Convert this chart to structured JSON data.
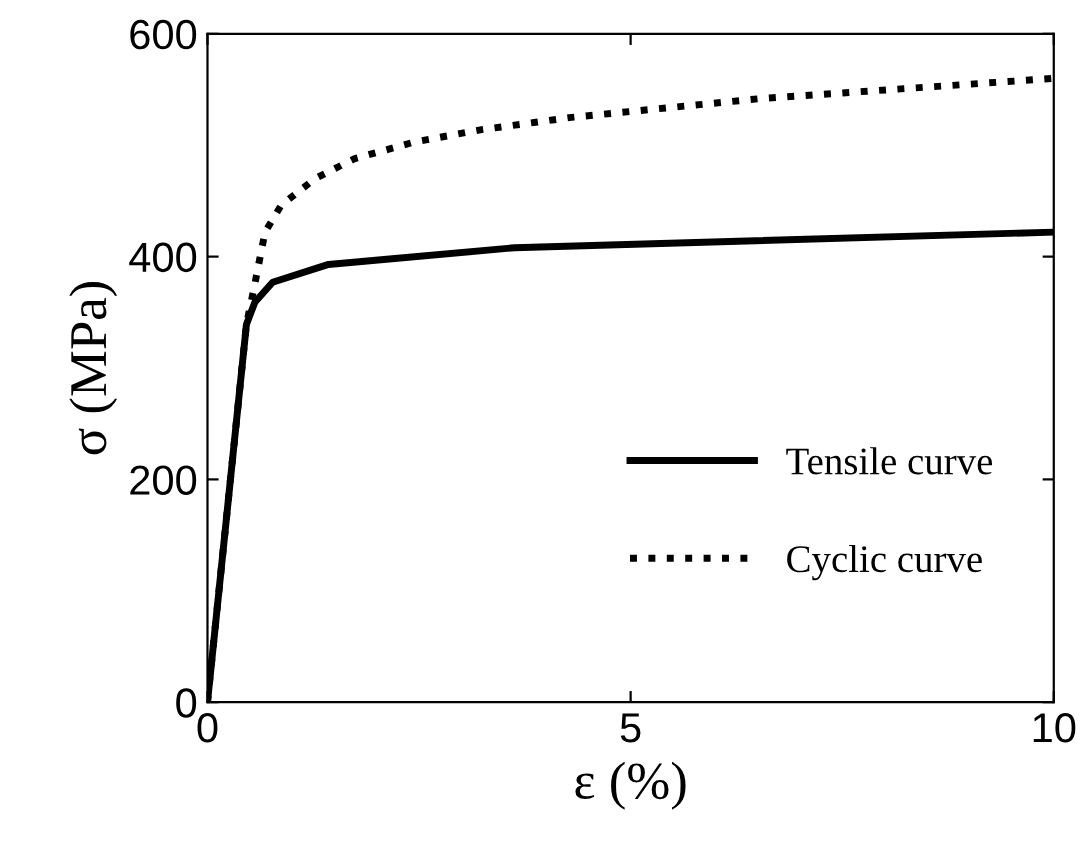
{
  "chart_data": {
    "type": "line",
    "xlabel": "ε (%)",
    "ylabel": "σ (MPa)",
    "xlim": [
      0,
      10
    ],
    "ylim": [
      0,
      600
    ],
    "xticks": [
      0,
      5,
      10
    ],
    "yticks": [
      0,
      200,
      400,
      600
    ],
    "grid": false,
    "legend": "bottom right",
    "series": [
      {
        "name": "Tensile curve",
        "color": "#000000",
        "line_style": "solid",
        "x": [
          0,
          0.46,
          0.56,
          0.77,
          1.43,
          3.63,
          10
        ],
        "values": [
          0,
          339,
          359,
          377,
          393,
          408,
          422
        ]
      },
      {
        "name": "Cyclic curve",
        "color": "#000000",
        "line_style": "dotted",
        "x": [
          0,
          0.46,
          0.54,
          0.68,
          0.87,
          1.27,
          1.74,
          2.45,
          3.24,
          4.3,
          6.55,
          10
        ],
        "values": [
          0,
          339,
          368,
          422,
          446,
          470,
          488,
          503,
          514,
          525,
          542,
          560
        ]
      }
    ]
  }
}
